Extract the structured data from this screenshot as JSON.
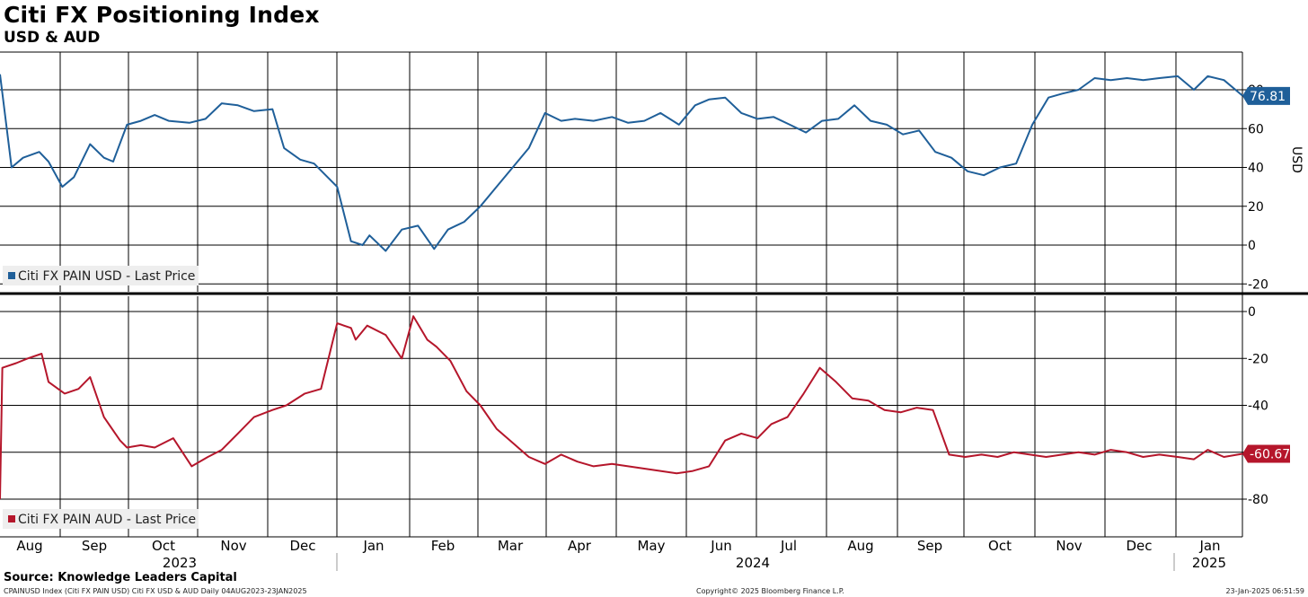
{
  "title": "Citi FX Positioning Index",
  "subtitle": "USD & AUD",
  "source": "Source: Knowledge Leaders Capital",
  "footer": {
    "left": "CPAINUSD Index (Citi FX PAIN USD) Citi FX USD & AUD  Daily 04AUG2023-23JAN2025",
    "center": "Copyright© 2025 Bloomberg Finance L.P.",
    "right": "23-Jan-2025 06:51:59"
  },
  "colors": {
    "usd": "#1f5f99",
    "aud": "#b5162b",
    "grid": "#000000"
  },
  "months": [
    "Aug",
    "Sep",
    "Oct",
    "Nov",
    "Dec",
    "Jan",
    "Feb",
    "Mar",
    "Apr",
    "May",
    "Jun",
    "Jul",
    "Aug",
    "Sep",
    "Oct",
    "Nov",
    "Dec",
    "Jan"
  ],
  "years": [
    "2023",
    "2024",
    "2025"
  ],
  "chart_data": [
    {
      "type": "line",
      "series": [
        {
          "name": "Citi FX PAIN USD - Last Price",
          "last_value": "76.81"
        }
      ],
      "ylabel": "USD",
      "ylim": [
        -22,
        95
      ],
      "yticks": [
        "-20",
        "0",
        "20",
        "40",
        "60",
        "80"
      ],
      "x": [
        "2023-08-04",
        "2023-08-09",
        "2023-08-14",
        "2023-08-21",
        "2023-08-25",
        "2023-08-31",
        "2023-09-05",
        "2023-09-12",
        "2023-09-18",
        "2023-09-22",
        "2023-09-28",
        "2023-10-04",
        "2023-10-10",
        "2023-10-16",
        "2023-10-25",
        "2023-11-01",
        "2023-11-08",
        "2023-11-15",
        "2023-11-22",
        "2023-11-30",
        "2023-12-05",
        "2023-12-12",
        "2023-12-18",
        "2023-12-28",
        "2024-01-03",
        "2024-01-08",
        "2024-01-11",
        "2024-01-18",
        "2024-01-25",
        "2024-02-01",
        "2024-02-08",
        "2024-02-14",
        "2024-02-21",
        "2024-02-28",
        "2024-03-06",
        "2024-03-13",
        "2024-03-20",
        "2024-03-27",
        "2024-04-03",
        "2024-04-09",
        "2024-04-17",
        "2024-04-25",
        "2024-05-02",
        "2024-05-09",
        "2024-05-16",
        "2024-05-24",
        "2024-05-31",
        "2024-06-06",
        "2024-06-13",
        "2024-06-20",
        "2024-06-27",
        "2024-07-04",
        "2024-07-11",
        "2024-07-18",
        "2024-07-25",
        "2024-08-01",
        "2024-08-08",
        "2024-08-15",
        "2024-08-22",
        "2024-08-29",
        "2024-09-05",
        "2024-09-12",
        "2024-09-19",
        "2024-09-26",
        "2024-10-03",
        "2024-10-10",
        "2024-10-17",
        "2024-10-24",
        "2024-10-31",
        "2024-11-06",
        "2024-11-13",
        "2024-11-20",
        "2024-11-27",
        "2024-12-04",
        "2024-12-11",
        "2024-12-18",
        "2024-12-26",
        "2025-01-02",
        "2025-01-08",
        "2025-01-15",
        "2025-01-23"
      ],
      "values": [
        88,
        40,
        45,
        48,
        43,
        30,
        35,
        52,
        45,
        43,
        62,
        64,
        67,
        64,
        63,
        65,
        73,
        72,
        69,
        70,
        50,
        44,
        42,
        30,
        2,
        0,
        5,
        -3,
        8,
        10,
        -2,
        8,
        12,
        20,
        30,
        40,
        50,
        68,
        64,
        65,
        64,
        66,
        63,
        64,
        68,
        62,
        72,
        75,
        76,
        68,
        65,
        66,
        62,
        58,
        64,
        65,
        72,
        64,
        62,
        57,
        59,
        48,
        45,
        38,
        36,
        40,
        42,
        62,
        76,
        78,
        80,
        86,
        85,
        86,
        85,
        86,
        87,
        80,
        87,
        85,
        77
      ]
    },
    {
      "type": "line",
      "series": [
        {
          "name": "Citi FX PAIN AUD - Last Price",
          "last_value": "-60.67"
        }
      ],
      "ylabel": "AUD",
      "ylim": [
        -95,
        0
      ],
      "yticks": [
        "0",
        "-20",
        "-40",
        "-60",
        "-80"
      ],
      "x": [
        "2023-08-04",
        "2023-08-05",
        "2023-08-11",
        "2023-08-16",
        "2023-08-22",
        "2023-08-25",
        "2023-09-01",
        "2023-09-07",
        "2023-09-12",
        "2023-09-18",
        "2023-09-25",
        "2023-09-28",
        "2023-10-04",
        "2023-10-10",
        "2023-10-18",
        "2023-10-26",
        "2023-11-02",
        "2023-11-08",
        "2023-11-15",
        "2023-11-22",
        "2023-11-30",
        "2023-12-06",
        "2023-12-14",
        "2023-12-21",
        "2023-12-28",
        "2024-01-03",
        "2024-01-05",
        "2024-01-10",
        "2024-01-18",
        "2024-01-25",
        "2024-01-30",
        "2024-02-05",
        "2024-02-09",
        "2024-02-15",
        "2024-02-22",
        "2024-02-28",
        "2024-03-06",
        "2024-03-13",
        "2024-03-20",
        "2024-03-27",
        "2024-04-03",
        "2024-04-10",
        "2024-04-17",
        "2024-04-25",
        "2024-05-02",
        "2024-05-09",
        "2024-05-16",
        "2024-05-23",
        "2024-05-30",
        "2024-06-06",
        "2024-06-13",
        "2024-06-20",
        "2024-06-27",
        "2024-07-03",
        "2024-07-10",
        "2024-07-17",
        "2024-07-24",
        "2024-07-31",
        "2024-08-07",
        "2024-08-14",
        "2024-08-21",
        "2024-08-28",
        "2024-09-04",
        "2024-09-11",
        "2024-09-18",
        "2024-09-25",
        "2024-10-02",
        "2024-10-09",
        "2024-10-16",
        "2024-10-23",
        "2024-10-30",
        "2024-11-06",
        "2024-11-13",
        "2024-11-20",
        "2024-11-27",
        "2024-12-04",
        "2024-12-11",
        "2024-12-18",
        "2024-12-26",
        "2025-01-02",
        "2025-01-08",
        "2025-01-15",
        "2025-01-23"
      ],
      "values": [
        -80,
        -24,
        -22,
        -20,
        -18,
        -30,
        -35,
        -33,
        -28,
        -45,
        -55,
        -58,
        -57,
        -58,
        -54,
        -66,
        -62,
        -59,
        -52,
        -45,
        -42,
        -40,
        -35,
        -33,
        -5,
        -7,
        -12,
        -6,
        -10,
        -20,
        -2,
        -12,
        -15,
        -21,
        -34,
        -40,
        -50,
        -56,
        -62,
        -65,
        -61,
        -64,
        -66,
        -65,
        -66,
        -67,
        -68,
        -69,
        -68,
        -66,
        -55,
        -52,
        -54,
        -48,
        -45,
        -35,
        -24,
        -30,
        -37,
        -38,
        -42,
        -43,
        -41,
        -42,
        -61,
        -62,
        -61,
        -62,
        -60,
        -61,
        -62,
        -61,
        -60,
        -61,
        -59,
        -60,
        -62,
        -61,
        -62,
        -63,
        -59,
        -62,
        -60.67
      ]
    }
  ]
}
